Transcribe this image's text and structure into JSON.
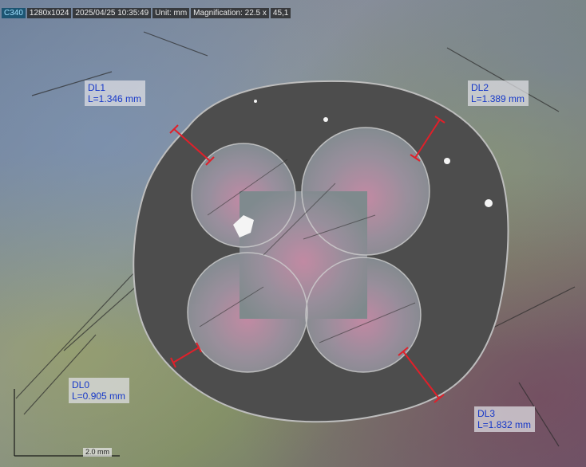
{
  "status_bar": {
    "camera": "C340",
    "resolution": "1280x1024",
    "datetime": "2025/04/25 10:35:49",
    "unit": "Unit: mm",
    "magnification": "Magnification: 22.5 x",
    "extra": "45,1"
  },
  "measurements": [
    {
      "id": "DL1",
      "value": "L=1.346 mm"
    },
    {
      "id": "DL2",
      "value": "L=1.389 mm"
    },
    {
      "id": "DL0",
      "value": "L=0.905 mm"
    },
    {
      "id": "DL3",
      "value": "L=1.832 mm"
    }
  ],
  "scale_bar": {
    "label": "2.0 mm"
  },
  "colors": {
    "measure_line": "#e0202a",
    "label_text": "#1638c8",
    "part": "#4a4a4a"
  }
}
